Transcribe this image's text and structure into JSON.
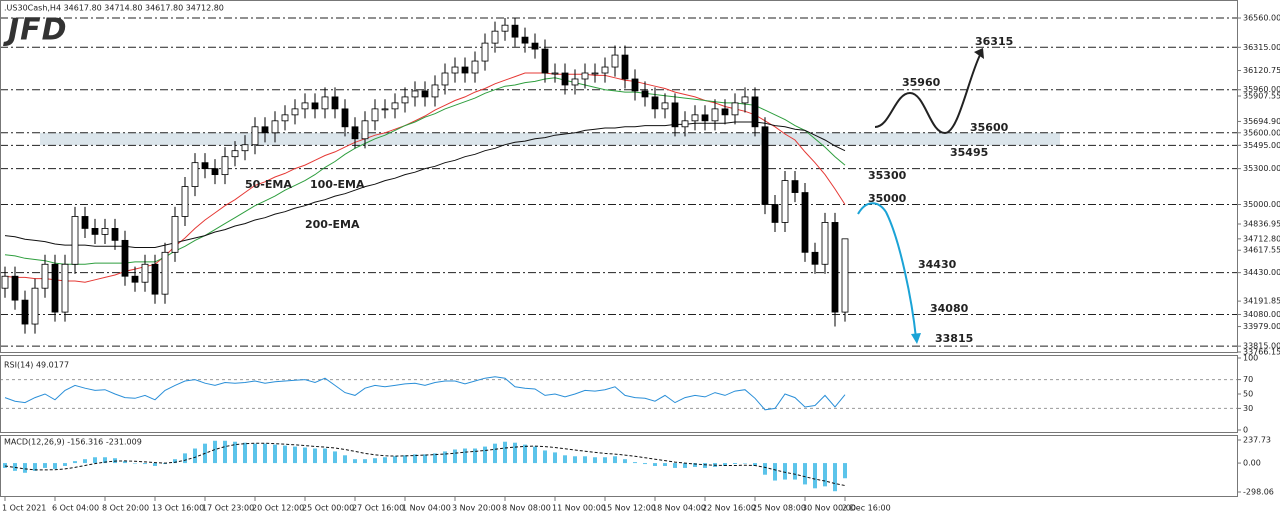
{
  "header": ".US30Cash,H4  34617.80 34714.80 34617.80 34712.80",
  "logo": "JFD",
  "chart_data": [
    {
      "type": "candlestick",
      "categories": [
        "1 Oct 2021",
        null,
        null,
        null,
        null,
        "6 Oct 04:00",
        null,
        null,
        null,
        null,
        "8 Oct 20:00",
        null,
        null,
        null,
        null,
        "13 Oct 16:00",
        null,
        null,
        null,
        null,
        "17 Oct 23:00",
        null,
        null,
        null,
        null,
        "20 Oct 12:00",
        null,
        null,
        null,
        null,
        "25 Oct 00:00",
        null,
        null,
        null,
        null,
        "27 Oct 16:00",
        null,
        null,
        null,
        null,
        "1 Nov 04:00",
        null,
        null,
        null,
        null,
        "3 Nov 20:00",
        null,
        null,
        null,
        null,
        "8 Nov 08:00",
        null,
        null,
        null,
        null,
        "11 Nov 00:00",
        null,
        null,
        null,
        null,
        "15 Nov 12:00",
        null,
        null,
        null,
        null,
        "18 Nov 04:00",
        null,
        null,
        null,
        null,
        "22 Nov 16:00",
        null,
        null,
        null,
        null,
        "25 Nov 08:00",
        null,
        null,
        null,
        null,
        "30 Nov 00:00",
        null,
        null,
        null,
        "2 Dec 16:00"
      ],
      "open": [
        34300,
        34400,
        34200,
        34000,
        34300,
        34500,
        34100,
        34500,
        34900,
        34800,
        34750,
        34800,
        34700,
        34400,
        34350,
        34500,
        34250,
        34600,
        34900,
        35150,
        35350,
        35300,
        35250,
        35400,
        35450,
        35500,
        35650,
        35600,
        35700,
        35750,
        35800,
        35850,
        35800,
        35900,
        35800,
        35650,
        35550,
        35700,
        35800,
        35800,
        35850,
        35900,
        35950,
        35900,
        36000,
        36100,
        36150,
        36100,
        36200,
        36350,
        36450,
        36500,
        36400,
        36350,
        36300,
        36100,
        36100,
        36000,
        36050,
        36100,
        36100,
        36150,
        36250,
        36050,
        35950,
        35900,
        35800,
        35850,
        35650,
        35700,
        35750,
        35700,
        35800,
        35750,
        35850,
        35900,
        35650,
        35000,
        34850,
        35200,
        35100,
        34600,
        34500,
        34850,
        34100
      ],
      "high": [
        34480,
        34480,
        34280,
        34380,
        34580,
        34580,
        34580,
        34980,
        34980,
        34880,
        34880,
        34880,
        34780,
        34480,
        34580,
        34580,
        34680,
        34980,
        35230,
        35430,
        35430,
        35380,
        35480,
        35530,
        35580,
        35730,
        35730,
        35780,
        35830,
        35880,
        35930,
        35930,
        35980,
        35980,
        35880,
        35730,
        35780,
        35880,
        35880,
        35930,
        35980,
        36030,
        36030,
        36080,
        36180,
        36230,
        36230,
        36280,
        36430,
        36530,
        36560,
        36560,
        36480,
        36430,
        36380,
        36180,
        36180,
        36130,
        36180,
        36180,
        36230,
        36330,
        36330,
        36130,
        36030,
        35980,
        35930,
        35930,
        35780,
        35830,
        35830,
        35880,
        35880,
        35930,
        35980,
        35980,
        35730,
        35080,
        35280,
        35280,
        35180,
        34680,
        34930,
        34930,
        34714.8
      ],
      "low": [
        34220,
        34120,
        33920,
        33920,
        34220,
        34020,
        34020,
        34420,
        34720,
        34670,
        34670,
        34620,
        34320,
        34270,
        34270,
        34170,
        34170,
        34520,
        34820,
        35070,
        35220,
        35170,
        35170,
        35320,
        35370,
        35420,
        35520,
        35520,
        35620,
        35670,
        35720,
        35720,
        35720,
        35720,
        35570,
        35470,
        35470,
        35620,
        35720,
        35720,
        35770,
        35820,
        35820,
        35820,
        35920,
        36020,
        36020,
        36020,
        36120,
        36270,
        36370,
        36320,
        36270,
        36220,
        36020,
        36020,
        35920,
        35920,
        35970,
        36020,
        36020,
        36070,
        35970,
        35870,
        35820,
        35720,
        35720,
        35570,
        35570,
        35620,
        35620,
        35620,
        35670,
        35670,
        35770,
        35570,
        34920,
        34770,
        34770,
        35020,
        34520,
        34420,
        34420,
        33979,
        34020
      ],
      "close": [
        34400,
        34200,
        34000,
        34300,
        34500,
        34100,
        34500,
        34900,
        34800,
        34750,
        34800,
        34700,
        34400,
        34350,
        34500,
        34250,
        34600,
        34900,
        35150,
        35350,
        35300,
        35250,
        35400,
        35450,
        35500,
        35650,
        35600,
        35700,
        35750,
        35800,
        35850,
        35800,
        35900,
        35800,
        35650,
        35550,
        35700,
        35800,
        35800,
        35850,
        35900,
        35950,
        35900,
        36000,
        36100,
        36150,
        36100,
        36200,
        36350,
        36450,
        36500,
        36400,
        36350,
        36300,
        36100,
        36100,
        36000,
        36050,
        36100,
        36100,
        36150,
        36250,
        36050,
        35950,
        35900,
        35800,
        35850,
        35650,
        35700,
        35750,
        35700,
        35800,
        35750,
        35850,
        35900,
        35650,
        35000,
        34850,
        35200,
        35100,
        34600,
        34500,
        34850,
        34100,
        34712.8
      ],
      "up_color": "#ffffff",
      "down_color": "#000000",
      "wick_color": "#000000",
      "series": [
        {
          "name": "50-EMA",
          "color": "#e53935",
          "values": [
            34400,
            34390,
            34390,
            34380,
            34380,
            34370,
            34360,
            34360,
            34350,
            34370,
            34390,
            34410,
            34440,
            34460,
            34480,
            34500,
            34570,
            34650,
            34720,
            34800,
            34870,
            34930,
            34990,
            35040,
            35100,
            35160,
            35190,
            35230,
            35260,
            35300,
            35330,
            35370,
            35410,
            35440,
            35480,
            35520,
            35550,
            35580,
            35600,
            35630,
            35660,
            35700,
            35740,
            35790,
            35830,
            35870,
            35900,
            35940,
            35970,
            36010,
            36040,
            36070,
            36100,
            36100,
            36100,
            36090,
            36090,
            36090,
            36090,
            36080,
            36080,
            36060,
            36040,
            36030,
            36010,
            35990,
            35970,
            35940,
            35920,
            35900,
            35870,
            35850,
            35820,
            35800,
            35780,
            35750,
            35700,
            35650,
            35590,
            35540,
            35440,
            35350,
            35250,
            35130,
            35000
          ]
        },
        {
          "name": "100-EMA",
          "color": "#2e9e3e",
          "values": [
            34580,
            34570,
            34550,
            34540,
            34530,
            34510,
            34500,
            34500,
            34500,
            34510,
            34510,
            34510,
            34510,
            34520,
            34520,
            34520,
            34560,
            34610,
            34650,
            34700,
            34740,
            34790,
            34840,
            34890,
            34940,
            34990,
            35030,
            35070,
            35120,
            35160,
            35200,
            35250,
            35310,
            35360,
            35420,
            35470,
            35510,
            35550,
            35580,
            35620,
            35660,
            35690,
            35730,
            35760,
            35800,
            35830,
            35860,
            35890,
            35930,
            35960,
            35990,
            36000,
            36020,
            36030,
            36050,
            36060,
            36040,
            36020,
            36000,
            35980,
            35960,
            35950,
            35940,
            35940,
            35930,
            35920,
            35910,
            35900,
            35890,
            35880,
            35870,
            35860,
            35850,
            35850,
            35840,
            35830,
            35790,
            35750,
            35710,
            35660,
            35620,
            35550,
            35480,
            35400,
            35330
          ]
        },
        {
          "name": "200-EMA",
          "color": "#111111",
          "values": [
            34740,
            34730,
            34710,
            34700,
            34690,
            34670,
            34660,
            34660,
            34660,
            34650,
            34650,
            34650,
            34650,
            34640,
            34640,
            34640,
            34660,
            34680,
            34700,
            34720,
            34740,
            34770,
            34790,
            34820,
            34840,
            34870,
            34890,
            34920,
            34940,
            34970,
            34990,
            35020,
            35040,
            35070,
            35090,
            35120,
            35150,
            35170,
            35200,
            35220,
            35250,
            35270,
            35300,
            35320,
            35350,
            35370,
            35400,
            35420,
            35450,
            35470,
            35500,
            35520,
            35530,
            35550,
            35560,
            35580,
            35590,
            35600,
            35620,
            35630,
            35640,
            35640,
            35650,
            35650,
            35660,
            35660,
            35660,
            35670,
            35670,
            35680,
            35680,
            35680,
            35680,
            35690,
            35690,
            35690,
            35680,
            35660,
            35650,
            35630,
            35620,
            35580,
            35540,
            35490,
            35450
          ]
        }
      ],
      "ylim": [
        33766.15,
        36694
      ],
      "yticks": [
        {
          "value": 36560,
          "label": "36560.00"
        },
        {
          "value": 36315,
          "label": "36315.00"
        },
        {
          "value": 36120.75,
          "label": "36120.75"
        },
        {
          "value": 35960,
          "label": "35960.00"
        },
        {
          "value": 35907.55,
          "label": "35907.55"
        },
        {
          "value": 35694.9,
          "label": "35694.90"
        },
        {
          "value": 35600,
          "label": "35600.00"
        },
        {
          "value": 35495,
          "label": "35495.00"
        },
        {
          "value": 35300,
          "label": "35300.00"
        },
        {
          "value": 35000,
          "label": "35000.00"
        },
        {
          "value": 34836.95,
          "label": "34836.95"
        },
        {
          "value": 34712.8,
          "label": "34712.80"
        },
        {
          "value": 34617.55,
          "label": "34617.55"
        },
        {
          "value": 34430,
          "label": "34430.00"
        },
        {
          "value": 34191.85,
          "label": "34191.85"
        },
        {
          "value": 34080,
          "label": "34080.00"
        },
        {
          "value": 33979,
          "label": "33979.00"
        },
        {
          "value": 33815,
          "label": "33815.00"
        },
        {
          "value": 33766.15,
          "label": "33766.15"
        }
      ],
      "levels": [
        36560,
        36315,
        35960,
        35600,
        35495,
        35300,
        35000,
        34430,
        34080,
        33815
      ],
      "zone": [
        35495,
        35600
      ],
      "annotations": [
        {
          "value": 36315,
          "color": "#222222"
        },
        {
          "value": 35960,
          "color": "#222222"
        },
        {
          "value": 35600,
          "color": "#222222"
        },
        {
          "value": 35495,
          "color": "#222222"
        },
        {
          "value": 35300,
          "color": "#1ba3d6"
        },
        {
          "value": 35000,
          "color": "#1ba3d6"
        },
        {
          "value": 34430,
          "color": "#1ba3d6"
        },
        {
          "value": 34080,
          "color": "#1ba3d6"
        },
        {
          "value": 33815,
          "color": "#1ba3d6"
        }
      ]
    },
    {
      "type": "line",
      "title": "RSI(14) 49.0177",
      "series": [
        {
          "color": "#2a8fd8",
          "values": [
            45,
            40,
            38,
            45,
            50,
            42,
            55,
            62,
            58,
            55,
            56,
            50,
            45,
            44,
            48,
            42,
            55,
            62,
            68,
            70,
            65,
            62,
            66,
            65,
            66,
            68,
            65,
            67,
            68,
            69,
            70,
            66,
            72,
            62,
            52,
            48,
            58,
            62,
            60,
            62,
            64,
            65,
            62,
            66,
            68,
            68,
            64,
            68,
            72,
            74,
            72,
            60,
            58,
            57,
            48,
            50,
            46,
            50,
            55,
            54,
            56,
            60,
            48,
            45,
            44,
            40,
            48,
            38,
            45,
            48,
            46,
            52,
            48,
            54,
            56,
            44,
            28,
            30,
            50,
            45,
            32,
            34,
            48,
            32,
            49.0177
          ]
        }
      ],
      "ylim": [
        0,
        100
      ],
      "yticks": [
        100,
        70,
        50,
        30,
        0
      ],
      "levels": [
        70,
        30
      ]
    },
    {
      "type": "macd",
      "title": "MACD(12,26,9) -156.316 -231.009",
      "histogram": {
        "color": "#5cc4ea",
        "values": [
          -50,
          -80,
          -100,
          -80,
          -50,
          -60,
          -30,
          20,
          40,
          60,
          60,
          50,
          20,
          0,
          -10,
          -30,
          -10,
          40,
          100,
          150,
          200,
          230,
          230,
          220,
          210,
          200,
          200,
          190,
          180,
          170,
          160,
          150,
          150,
          120,
          80,
          40,
          40,
          50,
          60,
          70,
          80,
          90,
          90,
          100,
          120,
          140,
          150,
          150,
          170,
          200,
          220,
          210,
          190,
          170,
          130,
          110,
          80,
          70,
          70,
          60,
          60,
          70,
          40,
          10,
          -10,
          -30,
          -30,
          -50,
          -50,
          -40,
          -50,
          -40,
          -30,
          -10,
          0,
          -30,
          -120,
          -180,
          -170,
          -170,
          -220,
          -260,
          -240,
          -290,
          -156.316
        ]
      },
      "signal": {
        "color": "#111111",
        "values": [
          -30,
          -45,
          -60,
          -70,
          -70,
          -68,
          -60,
          -45,
          -25,
          -5,
          10,
          20,
          22,
          18,
          12,
          5,
          0,
          8,
          30,
          60,
          100,
          140,
          170,
          190,
          200,
          205,
          205,
          200,
          195,
          188,
          180,
          172,
          165,
          155,
          140,
          120,
          100,
          85,
          75,
          72,
          74,
          78,
          82,
          87,
          94,
          102,
          112,
          120,
          130,
          142,
          155,
          165,
          172,
          175,
          170,
          160,
          148,
          135,
          122,
          110,
          100,
          92,
          82,
          70,
          55,
          40,
          25,
          10,
          0,
          -10,
          -18,
          -22,
          -25,
          -25,
          -22,
          -25,
          -45,
          -70,
          -95,
          -115,
          -140,
          -165,
          -185,
          -210,
          -231.009
        ]
      },
      "ylim": [
        -329,
        279
      ],
      "yticks": [
        {
          "value": 237.73,
          "label": "237.73"
        },
        {
          "value": 0,
          "label": "0.00"
        },
        {
          "value": -298.06,
          "label": "-298.06"
        }
      ]
    }
  ]
}
